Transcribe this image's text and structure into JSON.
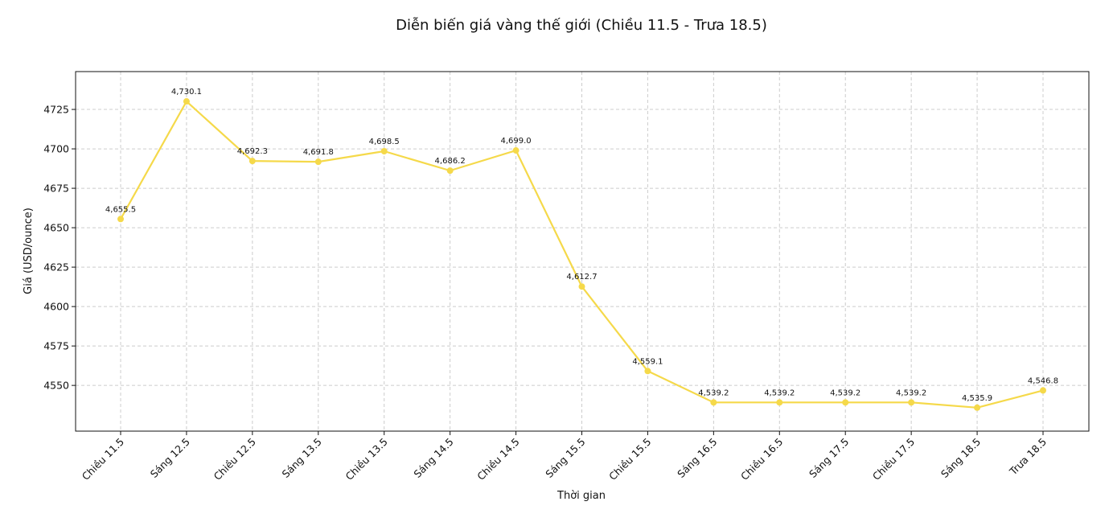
{
  "chart_data": {
    "type": "line",
    "title": "Diễn biến giá vàng thế giới (Chiều 11.5 - Trưa 18.5)",
    "xlabel": "Thời gian",
    "ylabel": "Giá (USD/ounce)",
    "ylim": [
      4521,
      4749
    ],
    "yticks": [
      4550,
      4575,
      4600,
      4625,
      4650,
      4675,
      4700,
      4725
    ],
    "grid": true,
    "categories": [
      "Chiều 11.5",
      "Sáng 12.5",
      "Chiều 12.5",
      "Sáng 13.5",
      "Chiều 13.5",
      "Sáng 14.5",
      "Chiều 14.5",
      "Sáng 15.5",
      "Chiều 15.5",
      "Sáng 16.5",
      "Chiều 16.5",
      "Sáng 17.5",
      "Chiều 17.5",
      "Sáng 18.5",
      "Trưa 18.5"
    ],
    "series": [
      {
        "color": "#f5d94a",
        "values": [
          4655.5,
          4730.1,
          4692.3,
          4691.8,
          4698.5,
          4686.2,
          4699.0,
          4612.7,
          4559.1,
          4539.2,
          4539.2,
          4539.2,
          4539.2,
          4535.9,
          4546.8
        ],
        "data_labels": [
          "4,655.5",
          "4,730.1",
          "4,692.3",
          "4,691.8",
          "4,698.5",
          "4,686.2",
          "4,699.0",
          "4,612.7",
          "4,559.1",
          "4,539.2",
          "4,539.2",
          "4,539.2",
          "4,539.2",
          "4,535.9",
          "4,546.8"
        ]
      }
    ]
  }
}
